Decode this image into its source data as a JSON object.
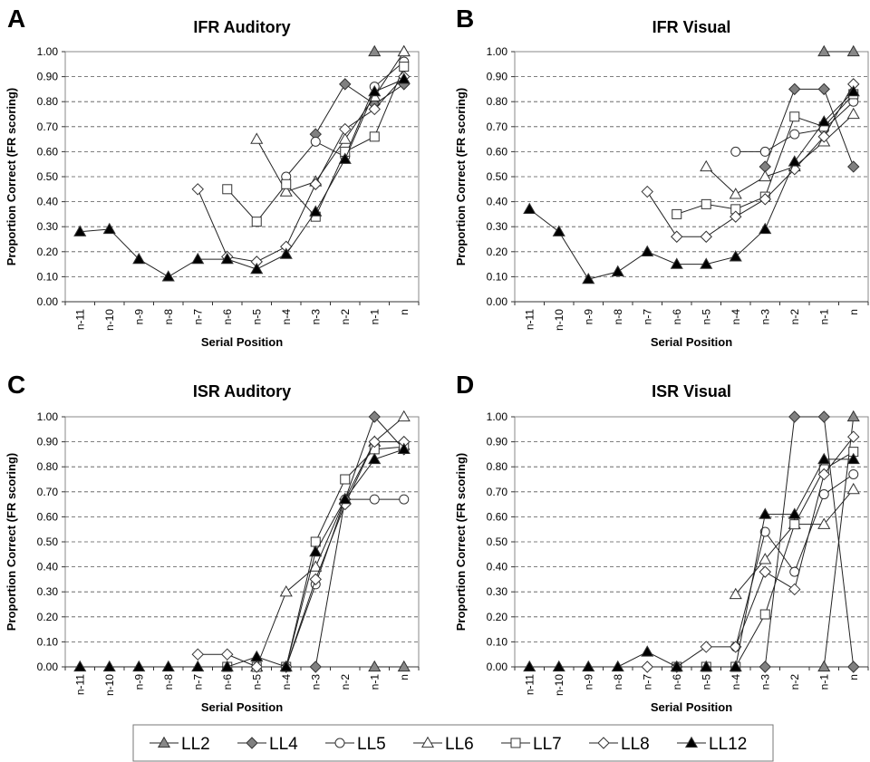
{
  "figure_caption_items": [
    "A",
    "B",
    "C",
    "D"
  ],
  "legend": [
    {
      "name": "LL2",
      "marker": "triangle",
      "fill": "#888888"
    },
    {
      "name": "LL4",
      "marker": "diamond",
      "fill": "#808080"
    },
    {
      "name": "LL5",
      "marker": "circle",
      "fill": "#ffffff"
    },
    {
      "name": "LL6",
      "marker": "triangle",
      "fill": "#ffffff"
    },
    {
      "name": "LL7",
      "marker": "square",
      "fill": "#ffffff"
    },
    {
      "name": "LL8",
      "marker": "diamond",
      "fill": "#ffffff"
    },
    {
      "name": "LL12",
      "marker": "triangle",
      "fill": "#000000"
    }
  ],
  "chart_data": [
    {
      "panel": "A",
      "type": "line",
      "title": "IFR Auditory",
      "xlabel": "Serial Position",
      "ylabel": "Proportion Correct (FR scoring)",
      "categories": [
        "n-11",
        "n-10",
        "n-9",
        "n-8",
        "n-7",
        "n-6",
        "n-5",
        "n-4",
        "n-3",
        "n-2",
        "n-1",
        "n"
      ],
      "ylim": [
        0,
        1
      ],
      "yticks": [
        "0.00",
        "0.10",
        "0.20",
        "0.30",
        "0.40",
        "0.50",
        "0.60",
        "0.70",
        "0.80",
        "0.90",
        "1.00"
      ],
      "grid": "horizontal dashed",
      "series": [
        {
          "name": "LL2",
          "values": [
            null,
            null,
            null,
            null,
            null,
            null,
            null,
            null,
            null,
            null,
            1.0,
            1.0
          ]
        },
        {
          "name": "LL4",
          "values": [
            null,
            null,
            null,
            null,
            null,
            null,
            null,
            null,
            0.67,
            0.87,
            0.79,
            0.87
          ]
        },
        {
          "name": "LL5",
          "values": [
            null,
            null,
            null,
            null,
            null,
            null,
            null,
            0.5,
            0.64,
            0.58,
            0.86,
            0.96
          ]
        },
        {
          "name": "LL6",
          "values": [
            null,
            null,
            null,
            null,
            null,
            null,
            0.65,
            0.44,
            0.48,
            0.65,
            0.82,
            1.0
          ]
        },
        {
          "name": "LL7",
          "values": [
            null,
            null,
            null,
            null,
            null,
            0.45,
            0.32,
            0.47,
            0.34,
            0.6,
            0.66,
            0.94
          ]
        },
        {
          "name": "LL8",
          "values": [
            null,
            null,
            null,
            null,
            0.45,
            0.18,
            0.16,
            0.22,
            0.47,
            0.69,
            0.77,
            0.9
          ]
        },
        {
          "name": "LL12",
          "values": [
            0.28,
            0.29,
            0.17,
            0.1,
            0.17,
            0.17,
            0.13,
            0.19,
            0.36,
            0.57,
            0.84,
            0.89
          ]
        }
      ]
    },
    {
      "panel": "B",
      "type": "line",
      "title": "IFR Visual",
      "xlabel": "Serial Position",
      "ylabel": "Proportion Correct (FR scoring)",
      "categories": [
        "n-11",
        "n-10",
        "n-9",
        "n-8",
        "n-7",
        "n-6",
        "n-5",
        "n-4",
        "n-3",
        "n-2",
        "n-1",
        "n"
      ],
      "ylim": [
        0,
        1
      ],
      "yticks": [
        "0.00",
        "0.10",
        "0.20",
        "0.30",
        "0.40",
        "0.50",
        "0.60",
        "0.70",
        "0.80",
        "0.90",
        "1.00"
      ],
      "grid": "horizontal dashed",
      "series": [
        {
          "name": "LL2",
          "values": [
            null,
            null,
            null,
            null,
            null,
            null,
            null,
            null,
            null,
            null,
            1.0,
            1.0
          ]
        },
        {
          "name": "LL4",
          "values": [
            null,
            null,
            null,
            null,
            null,
            null,
            null,
            null,
            0.54,
            0.85,
            0.85,
            0.54
          ]
        },
        {
          "name": "LL5",
          "values": [
            null,
            null,
            null,
            null,
            null,
            null,
            null,
            0.6,
            0.6,
            0.67,
            0.69,
            0.8
          ]
        },
        {
          "name": "LL6",
          "values": [
            null,
            null,
            null,
            null,
            null,
            null,
            0.54,
            0.43,
            0.5,
            0.54,
            0.64,
            0.75
          ]
        },
        {
          "name": "LL7",
          "values": [
            null,
            null,
            null,
            null,
            null,
            0.35,
            0.39,
            0.37,
            0.42,
            0.74,
            0.7,
            0.83
          ]
        },
        {
          "name": "LL8",
          "values": [
            null,
            null,
            null,
            null,
            0.44,
            0.26,
            0.26,
            0.34,
            0.41,
            0.53,
            0.66,
            0.87
          ]
        },
        {
          "name": "LL12",
          "values": [
            0.37,
            0.28,
            0.09,
            0.12,
            0.2,
            0.15,
            0.15,
            0.18,
            0.29,
            0.56,
            0.72,
            0.84
          ]
        }
      ]
    },
    {
      "panel": "C",
      "type": "line",
      "title": "ISR Auditory",
      "xlabel": "Serial Position",
      "ylabel": "Proportion Correct (FR scoring)",
      "categories": [
        "n-11",
        "n-10",
        "n-9",
        "n-8",
        "n-7",
        "n-6",
        "n-5",
        "n-4",
        "n-3",
        "n-2",
        "n-1",
        "n"
      ],
      "ylim": [
        0,
        1
      ],
      "yticks": [
        "0.00",
        "0.10",
        "0.20",
        "0.30",
        "0.40",
        "0.50",
        "0.60",
        "0.70",
        "0.80",
        "0.90",
        "1.00"
      ],
      "grid": "horizontal dashed",
      "series": [
        {
          "name": "LL2",
          "values": [
            null,
            null,
            null,
            null,
            null,
            null,
            null,
            null,
            null,
            null,
            0.0,
            0.0
          ]
        },
        {
          "name": "LL4",
          "values": [
            null,
            null,
            null,
            null,
            null,
            null,
            null,
            null,
            0.0,
            0.67,
            1.0,
            0.87
          ]
        },
        {
          "name": "LL5",
          "values": [
            null,
            null,
            null,
            null,
            null,
            null,
            null,
            0.0,
            0.33,
            0.67,
            0.67,
            0.67
          ]
        },
        {
          "name": "LL6",
          "values": [
            null,
            null,
            null,
            null,
            null,
            null,
            0.0,
            0.3,
            0.4,
            0.67,
            0.9,
            1.0
          ]
        },
        {
          "name": "LL7",
          "values": [
            null,
            null,
            null,
            null,
            null,
            0.0,
            0.0,
            0.0,
            0.5,
            0.75,
            0.87,
            0.88
          ]
        },
        {
          "name": "LL8",
          "values": [
            null,
            null,
            null,
            null,
            0.05,
            0.05,
            0.0,
            0.0,
            0.35,
            0.65,
            0.9,
            0.9
          ]
        },
        {
          "name": "LL12",
          "values": [
            0.0,
            0.0,
            0.0,
            0.0,
            0.0,
            0.0,
            0.04,
            0.0,
            0.46,
            0.67,
            0.83,
            0.87
          ]
        }
      ]
    },
    {
      "panel": "D",
      "type": "line",
      "title": "ISR Visual",
      "xlabel": "Serial Position",
      "ylabel": "Proportion Correct (FR scoring)",
      "categories": [
        "n-11",
        "n-10",
        "n-9",
        "n-8",
        "n-7",
        "n-6",
        "n-5",
        "n-4",
        "n-3",
        "n-2",
        "n-1",
        "n"
      ],
      "ylim": [
        0,
        1
      ],
      "yticks": [
        "0.00",
        "0.10",
        "0.20",
        "0.30",
        "0.40",
        "0.50",
        "0.60",
        "0.70",
        "0.80",
        "0.90",
        "1.00"
      ],
      "grid": "horizontal dashed",
      "series": [
        {
          "name": "LL2",
          "values": [
            null,
            null,
            null,
            null,
            null,
            null,
            null,
            null,
            null,
            null,
            0.0,
            1.0
          ]
        },
        {
          "name": "LL4",
          "values": [
            null,
            null,
            null,
            null,
            null,
            null,
            null,
            null,
            0.0,
            1.0,
            1.0,
            0.0
          ]
        },
        {
          "name": "LL5",
          "values": [
            null,
            null,
            null,
            null,
            null,
            null,
            null,
            0.08,
            0.54,
            0.38,
            0.69,
            0.77
          ]
        },
        {
          "name": "LL6",
          "values": [
            null,
            null,
            null,
            null,
            null,
            null,
            null,
            0.29,
            0.43,
            0.57,
            0.57,
            0.71
          ]
        },
        {
          "name": "LL7",
          "values": [
            null,
            null,
            null,
            null,
            null,
            0.0,
            0.0,
            0.0,
            0.21,
            0.57,
            0.79,
            0.86
          ]
        },
        {
          "name": "LL8",
          "values": [
            null,
            null,
            null,
            null,
            0.0,
            0.0,
            0.08,
            0.08,
            0.38,
            0.31,
            0.77,
            0.92
          ]
        },
        {
          "name": "LL12",
          "values": [
            0.0,
            0.0,
            0.0,
            0.0,
            0.06,
            0.0,
            0.0,
            0.0,
            0.61,
            0.61,
            0.83,
            0.83
          ]
        }
      ]
    }
  ]
}
